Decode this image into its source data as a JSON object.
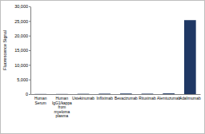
{
  "chart_data": {
    "type": "bar",
    "y_label": "Fluorescence Signal",
    "categories": [
      "Human Serum",
      "Human IgG1/kappa from myeloma plasma",
      "Ustekinumab",
      "Infliximab",
      "Bevacizumab",
      "Rituximab",
      "Alemtuzumab",
      "Adalimumab"
    ],
    "values": [
      50,
      50,
      100,
      150,
      200,
      150,
      250,
      25300
    ],
    "color": "#1f3864",
    "ylim": [
      0,
      30000
    ],
    "yticks": [
      {
        "value": 0,
        "label": "0"
      },
      {
        "value": 5000,
        "label": "5,000"
      },
      {
        "value": 10000,
        "label": "10,000"
      },
      {
        "value": 15000,
        "label": "15,000"
      },
      {
        "value": 20000,
        "label": "20,000"
      },
      {
        "value": 25000,
        "label": "25,000"
      },
      {
        "value": 30000,
        "label": "30,000"
      }
    ],
    "grid": false
  }
}
